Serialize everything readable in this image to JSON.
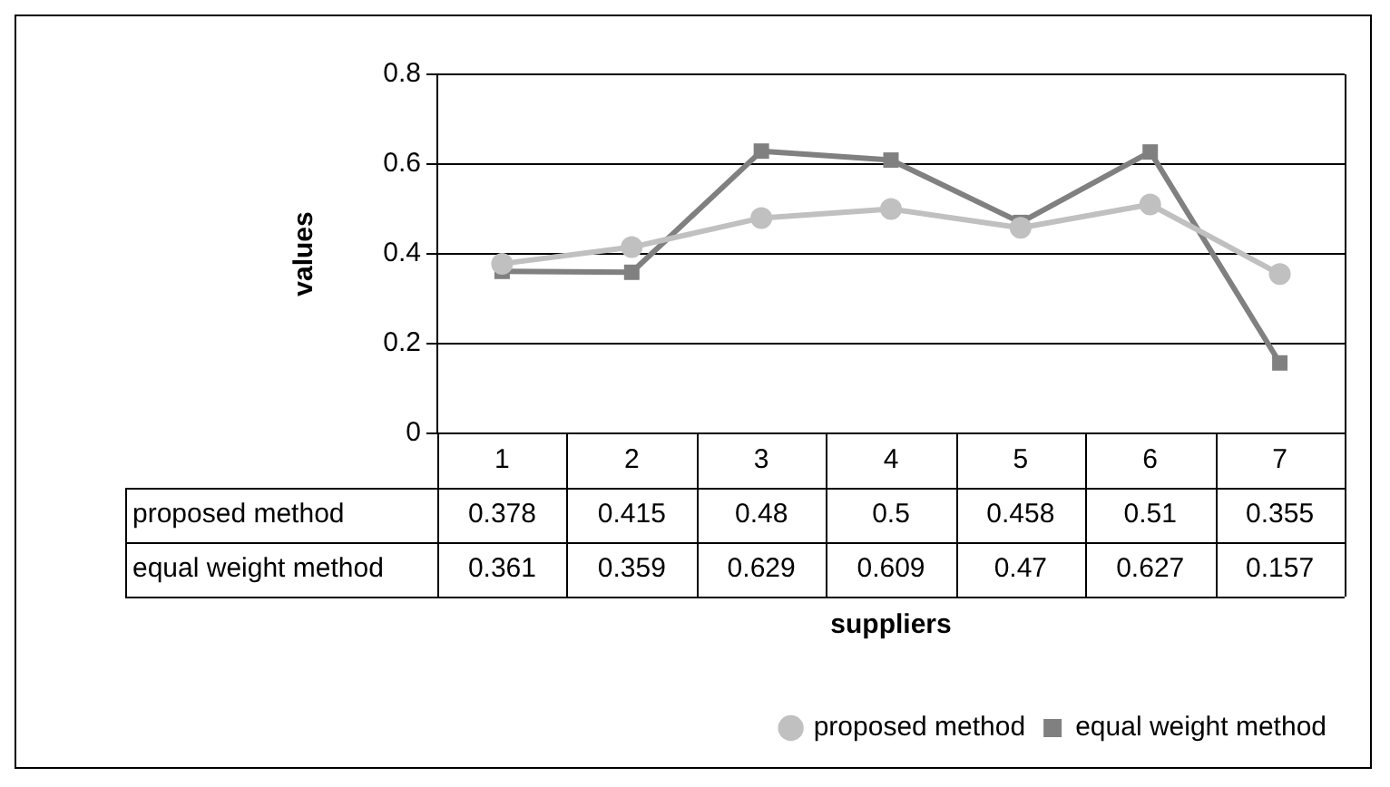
{
  "chart_data": {
    "type": "line",
    "xlabel": "suppliers",
    "ylabel": "values",
    "categories": [
      "1",
      "2",
      "3",
      "4",
      "5",
      "6",
      "7"
    ],
    "series": [
      {
        "name": "proposed method",
        "color": "#c0c0c0",
        "marker": "circle",
        "values": [
          0.378,
          0.415,
          0.48,
          0.5,
          0.458,
          0.51,
          0.355
        ]
      },
      {
        "name": "equal weight method",
        "color": "#808080",
        "marker": "square",
        "values": [
          0.361,
          0.359,
          0.629,
          0.609,
          0.47,
          0.627,
          0.157
        ]
      }
    ],
    "ylim": [
      0,
      0.8
    ],
    "yticks": [
      0,
      0.2,
      0.4,
      0.6,
      0.8
    ],
    "grid": "y",
    "legend": "bottom right",
    "data_labels": true,
    "line_style": "solid"
  }
}
